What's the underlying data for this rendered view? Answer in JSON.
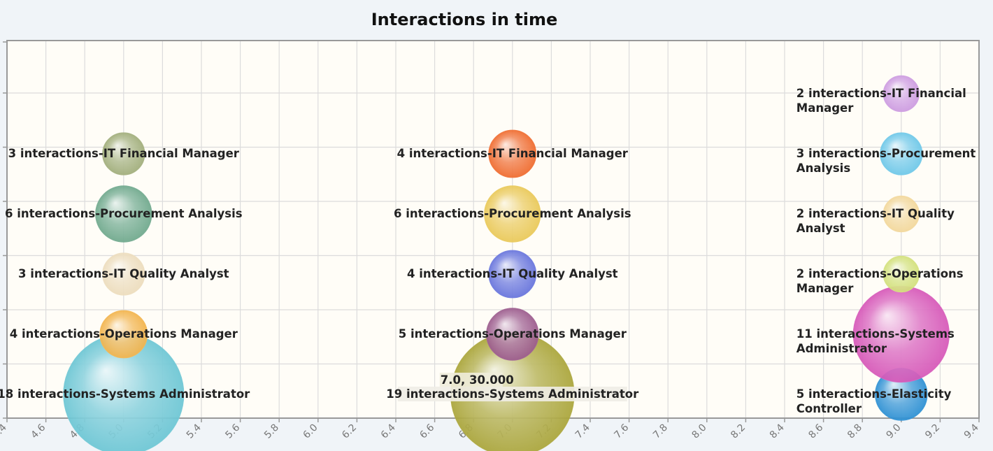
{
  "chart_data": {
    "type": "scatter",
    "title": "Interactions in time",
    "xlim": [
      4.4,
      9.4
    ],
    "ylim": [
      0,
      7
    ],
    "x_ticks": [
      "4.4",
      "4.6",
      "4.8",
      "5.0",
      "5.2",
      "5.4",
      "5.6",
      "5.8",
      "6.0",
      "6.2",
      "6.4",
      "6.6",
      "6.8",
      "7.0",
      "7.2",
      "7.4",
      "7.6",
      "7.8",
      "8.0",
      "8.2",
      "8.4",
      "8.6",
      "8.8",
      "9.0",
      "9.2",
      "9.4"
    ],
    "grid": true,
    "points": [
      {
        "x": 5.0,
        "y": 1,
        "size": 18,
        "label": "18 interactions-Systems Administrator",
        "color": "#6cc6d4"
      },
      {
        "x": 5.0,
        "y": 2,
        "size": 4,
        "label": "4 interactions-Operations Manager",
        "color": "#f2b34b"
      },
      {
        "x": 5.0,
        "y": 3,
        "size": 3,
        "label": "3 interactions-IT Quality Analyst",
        "color": "#ecdcbc"
      },
      {
        "x": 5.0,
        "y": 4,
        "size": 6,
        "label": "6 interactions-Procurement Analysis",
        "color": "#6ea88c"
      },
      {
        "x": 5.0,
        "y": 5,
        "size": 3,
        "label": "3 interactions-IT Financial Manager",
        "color": "#a0ad7a"
      },
      {
        "x": 7.0,
        "y": 1,
        "size": 19,
        "label": "19 interactions-Systems Administrator",
        "color": "#aaa53a"
      },
      {
        "x": 7.0,
        "y": 2,
        "size": 5,
        "label": "5 interactions-Operations Manager",
        "color": "#9b5a8c"
      },
      {
        "x": 7.0,
        "y": 3,
        "size": 4,
        "label": "4 interactions-IT Quality Analyst",
        "color": "#6673dc"
      },
      {
        "x": 7.0,
        "y": 4,
        "size": 6,
        "label": "6 interactions-Procurement Analysis",
        "color": "#e9c857"
      },
      {
        "x": 7.0,
        "y": 5,
        "size": 4,
        "label": "4 interactions-IT Financial Manager",
        "color": "#ef6a2d"
      },
      {
        "x": 9.0,
        "y": 1,
        "size": 5,
        "label": "5 interactions-Elasticity Controller",
        "color": "#2b8fd3"
      },
      {
        "x": 9.0,
        "y": 2,
        "size": 11,
        "label": "11 interactions-Systems Administrator",
        "color": "#d657b8"
      },
      {
        "x": 9.0,
        "y": 3,
        "size": 2,
        "label": "2 interactions-Operations Manager",
        "color": "#d2e07a"
      },
      {
        "x": 9.0,
        "y": 4,
        "size": 2,
        "label": "2 interactions-IT Quality Analyst",
        "color": "#f2d79a"
      },
      {
        "x": 9.0,
        "y": 5,
        "size": 3,
        "label": "3 interactions-Procurement Analysis",
        "color": "#6cc7e8"
      },
      {
        "x": 9.0,
        "y": 6,
        "size": 2,
        "label": "2 interactions-IT Financial Manager",
        "color": "#cc9ae0"
      }
    ],
    "tooltip": {
      "text": "7.0, 30.000"
    }
  }
}
